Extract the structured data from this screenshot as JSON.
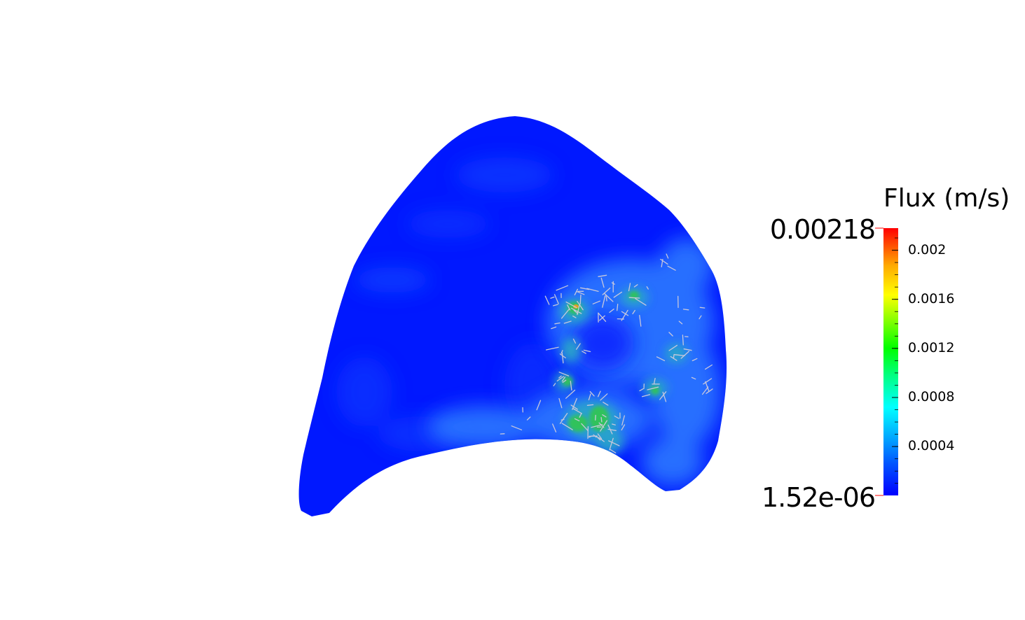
{
  "legend": {
    "title": "Flux (m/s)",
    "max_label": "0.00218",
    "min_label": "1.52e-06",
    "range": [
      1.52e-06,
      0.00218
    ],
    "ticks": [
      "0.002",
      "0.0016",
      "0.0012",
      "0.0008",
      "0.0004"
    ],
    "tick_values": [
      0.002,
      0.0016,
      0.0012,
      0.0008,
      0.0004
    ],
    "colormap": [
      "#0000ff",
      "#00ffff",
      "#00ff00",
      "#ffff00",
      "#ff0000"
    ]
  },
  "scene": {
    "background": "#ffffff",
    "surface_color": "#0018ff",
    "arrow_color": "#c8c8dc"
  }
}
